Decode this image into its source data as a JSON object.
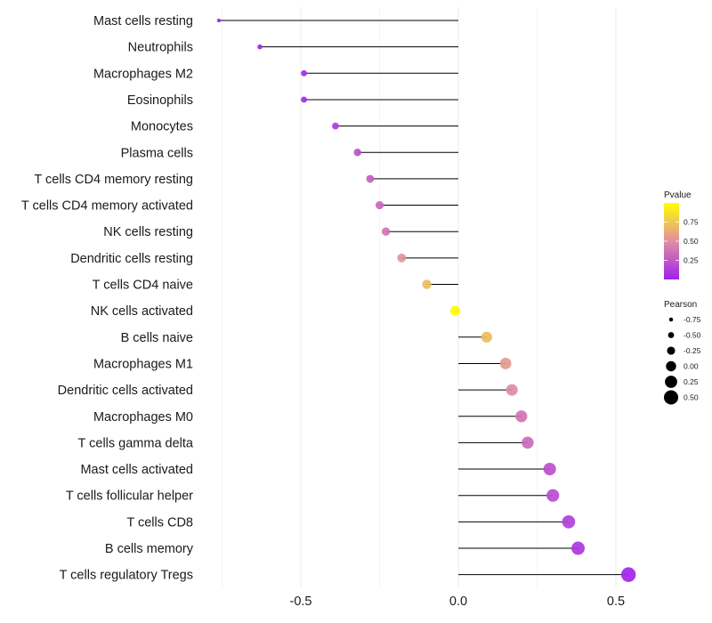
{
  "chart_data": {
    "type": "lollipop",
    "title": "",
    "xlabel": "",
    "ylabel": "",
    "xlim": [
      -0.82,
      0.61
    ],
    "x_ticks": [
      -0.5,
      0.0,
      0.5
    ],
    "x_tick_labels": [
      "-0.5",
      "0.0",
      "0.5"
    ],
    "x_minor_gridlines": [
      -0.75,
      -0.25,
      0.25
    ],
    "grid": true,
    "categories": [
      "Mast cells resting",
      "Neutrophils",
      "Macrophages M2",
      "Eosinophils",
      "Monocytes",
      "Plasma cells",
      "T cells CD4 memory resting",
      "T cells CD4 memory activated",
      "NK cells resting",
      "Dendritic cells resting",
      "T cells CD4 naive",
      "NK cells activated",
      "B cells naive",
      "Macrophages M1",
      "Dendritic cells activated",
      "Macrophages M0",
      "T cells gamma delta",
      "Mast cells activated",
      "T cells follicular helper",
      "T cells CD8",
      "B cells memory",
      "T cells regulatory  Tregs"
    ],
    "pearson": [
      -0.76,
      -0.63,
      -0.49,
      -0.49,
      -0.39,
      -0.32,
      -0.28,
      -0.25,
      -0.23,
      -0.18,
      -0.1,
      -0.01,
      0.09,
      0.15,
      0.17,
      0.2,
      0.22,
      0.29,
      0.3,
      0.35,
      0.38,
      0.54
    ],
    "pvalue": [
      0.01,
      0.02,
      0.05,
      0.05,
      0.12,
      0.22,
      0.28,
      0.32,
      0.38,
      0.52,
      0.7,
      0.98,
      0.7,
      0.55,
      0.48,
      0.38,
      0.33,
      0.22,
      0.2,
      0.14,
      0.1,
      0.02
    ],
    "legend": {
      "color": {
        "title": "Pvalue",
        "ticks": [
          0.25,
          0.5,
          0.75
        ],
        "tick_labels": [
          "0.25",
          "0.50",
          "0.75"
        ],
        "low_color": "#A020F0",
        "mid_color": "#E08FA0",
        "high_color": "#FFFF00",
        "range": [
          0.0,
          1.0
        ]
      },
      "size": {
        "title": "Pearson",
        "values": [
          -0.75,
          -0.5,
          -0.25,
          0.0,
          0.25,
          0.5
        ],
        "labels": [
          "-0.75",
          "-0.50",
          "-0.25",
          "0.00",
          "0.25",
          "0.50"
        ]
      },
      "placement": "right"
    },
    "segment_color": "#000000",
    "gridline_color": "#ebebeb"
  }
}
